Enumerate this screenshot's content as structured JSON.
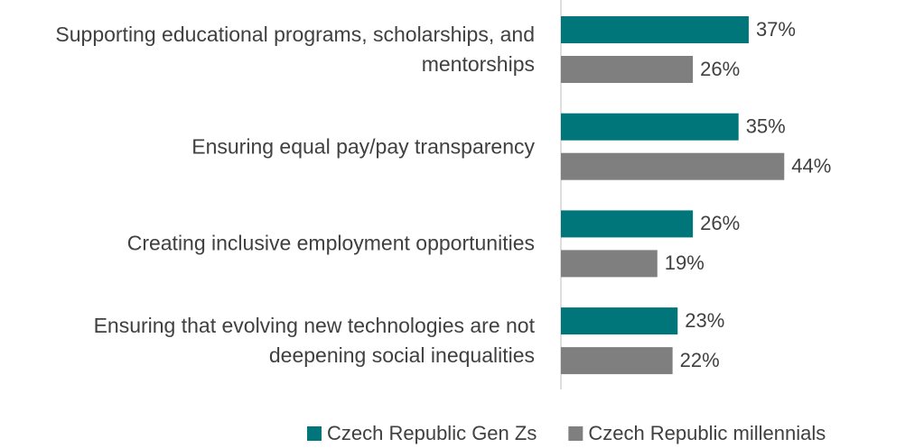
{
  "chart_data": {
    "type": "bar",
    "orientation": "horizontal",
    "categories": [
      "Supporting educational programs, scholarships, and mentorships",
      "Ensuring equal pay/pay transparency",
      "Creating inclusive employment opportunities",
      "Ensuring that evolving new technologies are not deepening social inequalities"
    ],
    "series": [
      {
        "name": "Czech Republic Gen Zs",
        "color": "#00767a",
        "values": [
          37,
          35,
          26,
          23
        ],
        "value_labels": [
          "37%",
          "35%",
          "26%",
          "23%"
        ]
      },
      {
        "name": "Czech Republic millennials",
        "color": "#7f7f7f",
        "values": [
          26,
          44,
          19,
          22
        ],
        "value_labels": [
          "26%",
          "44%",
          "19%",
          "22%"
        ]
      }
    ],
    "legend": "bottom"
  }
}
